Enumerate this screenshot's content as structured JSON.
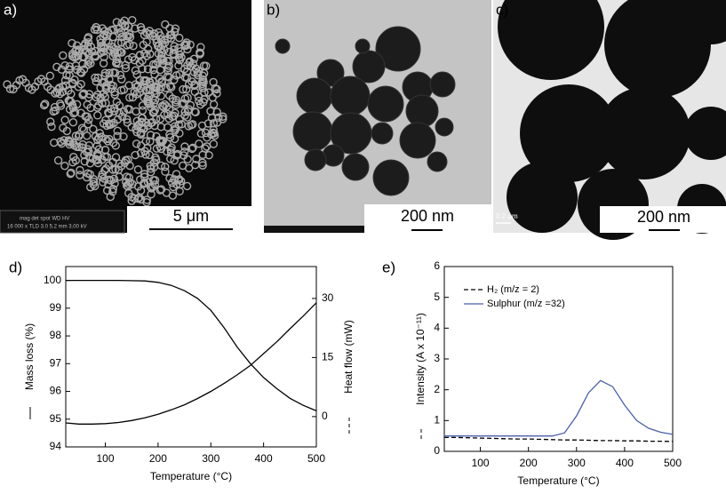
{
  "panels": [
    {
      "label": "a)",
      "scale_bar": "5 μm",
      "info": [
        "mag  det  spot  WD  HV",
        "16 000 x  TLD  3.0  5.2 mm  3.00 kV"
      ]
    },
    {
      "label": "b)",
      "scale_bar": "200 nm"
    },
    {
      "label": "c)",
      "scale_bar": "200 nm",
      "small_bar": "0.2 μm"
    }
  ],
  "chart_data": [
    {
      "type": "line",
      "panel": "d)",
      "xlabel": "Temperature (°C)",
      "ylabel": "Mass loss (%)",
      "y2label": "Heat flow (mW)",
      "x": [
        25,
        50,
        75,
        100,
        125,
        150,
        175,
        200,
        225,
        250,
        275,
        300,
        325,
        350,
        375,
        400,
        425,
        450,
        475,
        500
      ],
      "xlim": [
        25,
        500
      ],
      "xticks": [
        100,
        200,
        300,
        400,
        500
      ],
      "ylim": [
        94,
        100.5
      ],
      "yticks": [
        94,
        95,
        96,
        97,
        98,
        99,
        100
      ],
      "y2lim": [
        -7.7,
        38.1
      ],
      "y2ticks": [
        0,
        15,
        30
      ],
      "series": [
        {
          "color": "#000000",
          "dash": false,
          "values": [
            100,
            100,
            100,
            100,
            100,
            99.99,
            99.98,
            99.93,
            99.82,
            99.63,
            99.35,
            98.92,
            98.3,
            97.6,
            97.0,
            96.5,
            96.1,
            95.75,
            95.5,
            95.3
          ]
        },
        {
          "color": "#000000",
          "dash": false,
          "axis": "y2",
          "values": [
            -1.6,
            -1.9,
            -1.9,
            -1.8,
            -1.5,
            -1.0,
            -0.3,
            0.6,
            1.7,
            3.0,
            4.6,
            6.4,
            8.4,
            10.6,
            13.0,
            16.0,
            19.0,
            22.3,
            25.5,
            28.9
          ]
        }
      ]
    },
    {
      "type": "line",
      "panel": "e)",
      "xlabel": "Temperature (°C)",
      "ylabel": "Intensity (A x 10⁻¹¹)",
      "legend": "upper left",
      "x": [
        25,
        50,
        75,
        100,
        125,
        150,
        175,
        200,
        225,
        250,
        275,
        300,
        325,
        350,
        375,
        400,
        425,
        450,
        475,
        500
      ],
      "xlim": [
        25,
        500
      ],
      "xticks": [
        100,
        200,
        300,
        400,
        500
      ],
      "ylim": [
        0,
        6
      ],
      "yticks": [
        0,
        1,
        2,
        3,
        4,
        5,
        6
      ],
      "series": [
        {
          "name": "H₂ (m/z = 2)",
          "color": "#000000",
          "dash": true,
          "values": [
            0.45,
            0.45,
            0.44,
            0.43,
            0.42,
            0.41,
            0.4,
            0.4,
            0.39,
            0.38,
            0.37,
            0.37,
            0.36,
            0.35,
            0.35,
            0.34,
            0.34,
            0.33,
            0.33,
            0.32
          ]
        },
        {
          "name": "Sulphur (m/z =32)",
          "color": "#4a5fa8",
          "dash": false,
          "values": [
            0.5,
            0.5,
            0.5,
            0.5,
            0.5,
            0.5,
            0.5,
            0.5,
            0.5,
            0.5,
            0.6,
            1.15,
            1.9,
            2.3,
            2.1,
            1.5,
            1.0,
            0.75,
            0.62,
            0.55
          ]
        }
      ]
    }
  ]
}
